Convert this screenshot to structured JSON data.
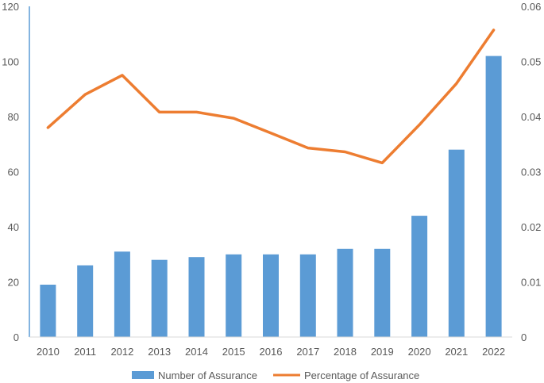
{
  "chart_data": {
    "type": "bar",
    "categories": [
      "2010",
      "2011",
      "2012",
      "2013",
      "2014",
      "2015",
      "2016",
      "2017",
      "2018",
      "2019",
      "2020",
      "2021",
      "2022"
    ],
    "series": [
      {
        "name": "Number of Assurance",
        "type": "bar",
        "axis": "left",
        "color": "#5B9BD5",
        "values": [
          19,
          26,
          31,
          28,
          29,
          30,
          30,
          30,
          32,
          32,
          44,
          68,
          102
        ]
      },
      {
        "name": "Percentage of Assurance",
        "type": "line",
        "axis": "right",
        "color": "#ED7D31",
        "values": [
          0.038,
          0.044,
          0.0475,
          0.0408,
          0.0408,
          0.0397,
          0.037,
          0.0343,
          0.0336,
          0.0316,
          0.0385,
          0.046,
          0.0557
        ]
      }
    ],
    "ylim_left": [
      0,
      120
    ],
    "yticks_left": [
      "0",
      "20",
      "40",
      "60",
      "80",
      "100",
      "120"
    ],
    "ylim_right": [
      0,
      0.06
    ],
    "yticks_right": [
      "0",
      "0.01",
      "0.02",
      "0.03",
      "0.04",
      "0.05",
      "0.06"
    ],
    "grid": false,
    "legend_position": "bottom"
  }
}
